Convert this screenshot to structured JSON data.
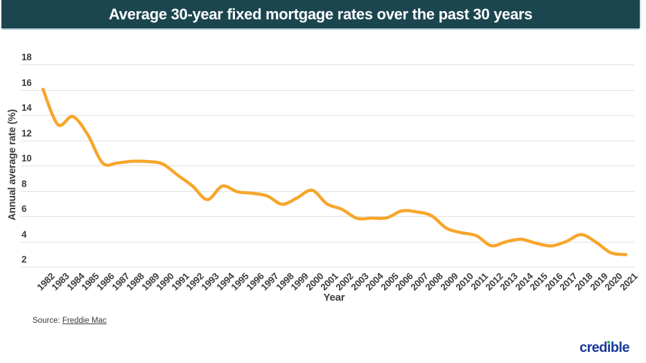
{
  "header": {
    "title": "Average 30-year fixed mortgage rates over the past 30 years"
  },
  "chart_data": {
    "type": "line",
    "title": "Average 30-year fixed mortgage rates over the past 30 years",
    "xlabel": "Year",
    "ylabel": "Annual average rate (%)",
    "categories": [
      1982,
      1983,
      1984,
      1985,
      1986,
      1987,
      1988,
      1989,
      1990,
      1991,
      1992,
      1993,
      1994,
      1995,
      1996,
      1997,
      1998,
      1999,
      2000,
      2001,
      2002,
      2003,
      2004,
      2005,
      2006,
      2007,
      2008,
      2009,
      2010,
      2011,
      2012,
      2013,
      2014,
      2015,
      2016,
      2017,
      2018,
      2019,
      2020,
      2021
    ],
    "series": [
      {
        "name": "Average 30-year fixed mortgage rate (%)",
        "color": "#F7A62B",
        "values": [
          16.04,
          13.24,
          13.88,
          12.43,
          10.19,
          10.21,
          10.34,
          10.32,
          10.13,
          9.25,
          8.39,
          7.31,
          8.38,
          7.93,
          7.81,
          7.6,
          6.94,
          7.44,
          8.05,
          6.97,
          6.54,
          5.83,
          5.84,
          5.87,
          6.41,
          6.34,
          6.03,
          5.04,
          4.69,
          4.45,
          3.66,
          3.98,
          4.17,
          3.85,
          3.65,
          3.99,
          4.54,
          3.94,
          3.1,
          2.96
        ]
      }
    ],
    "ylim": [
      2,
      18
    ],
    "yticks": [
      2,
      4,
      6,
      8,
      10,
      12,
      14,
      16,
      18
    ],
    "grid": true,
    "legend_position": "none"
  },
  "colors": {
    "header_bg": "#1B4650",
    "header_text": "#FFFFFF",
    "header_shadow": "#BCD1D8",
    "gridline": "#E2E2E2",
    "axis_text": "#3D3D3D",
    "line": "#F7A62B",
    "logo_blue": "#1B3A9B",
    "logo_green": "#27B062"
  },
  "footer": {
    "source_prefix": "Source: ",
    "source_link_text": "Freddie Mac"
  },
  "logo": {
    "part1": "cred",
    "dotless_i": "ı",
    "part2": "ble"
  }
}
